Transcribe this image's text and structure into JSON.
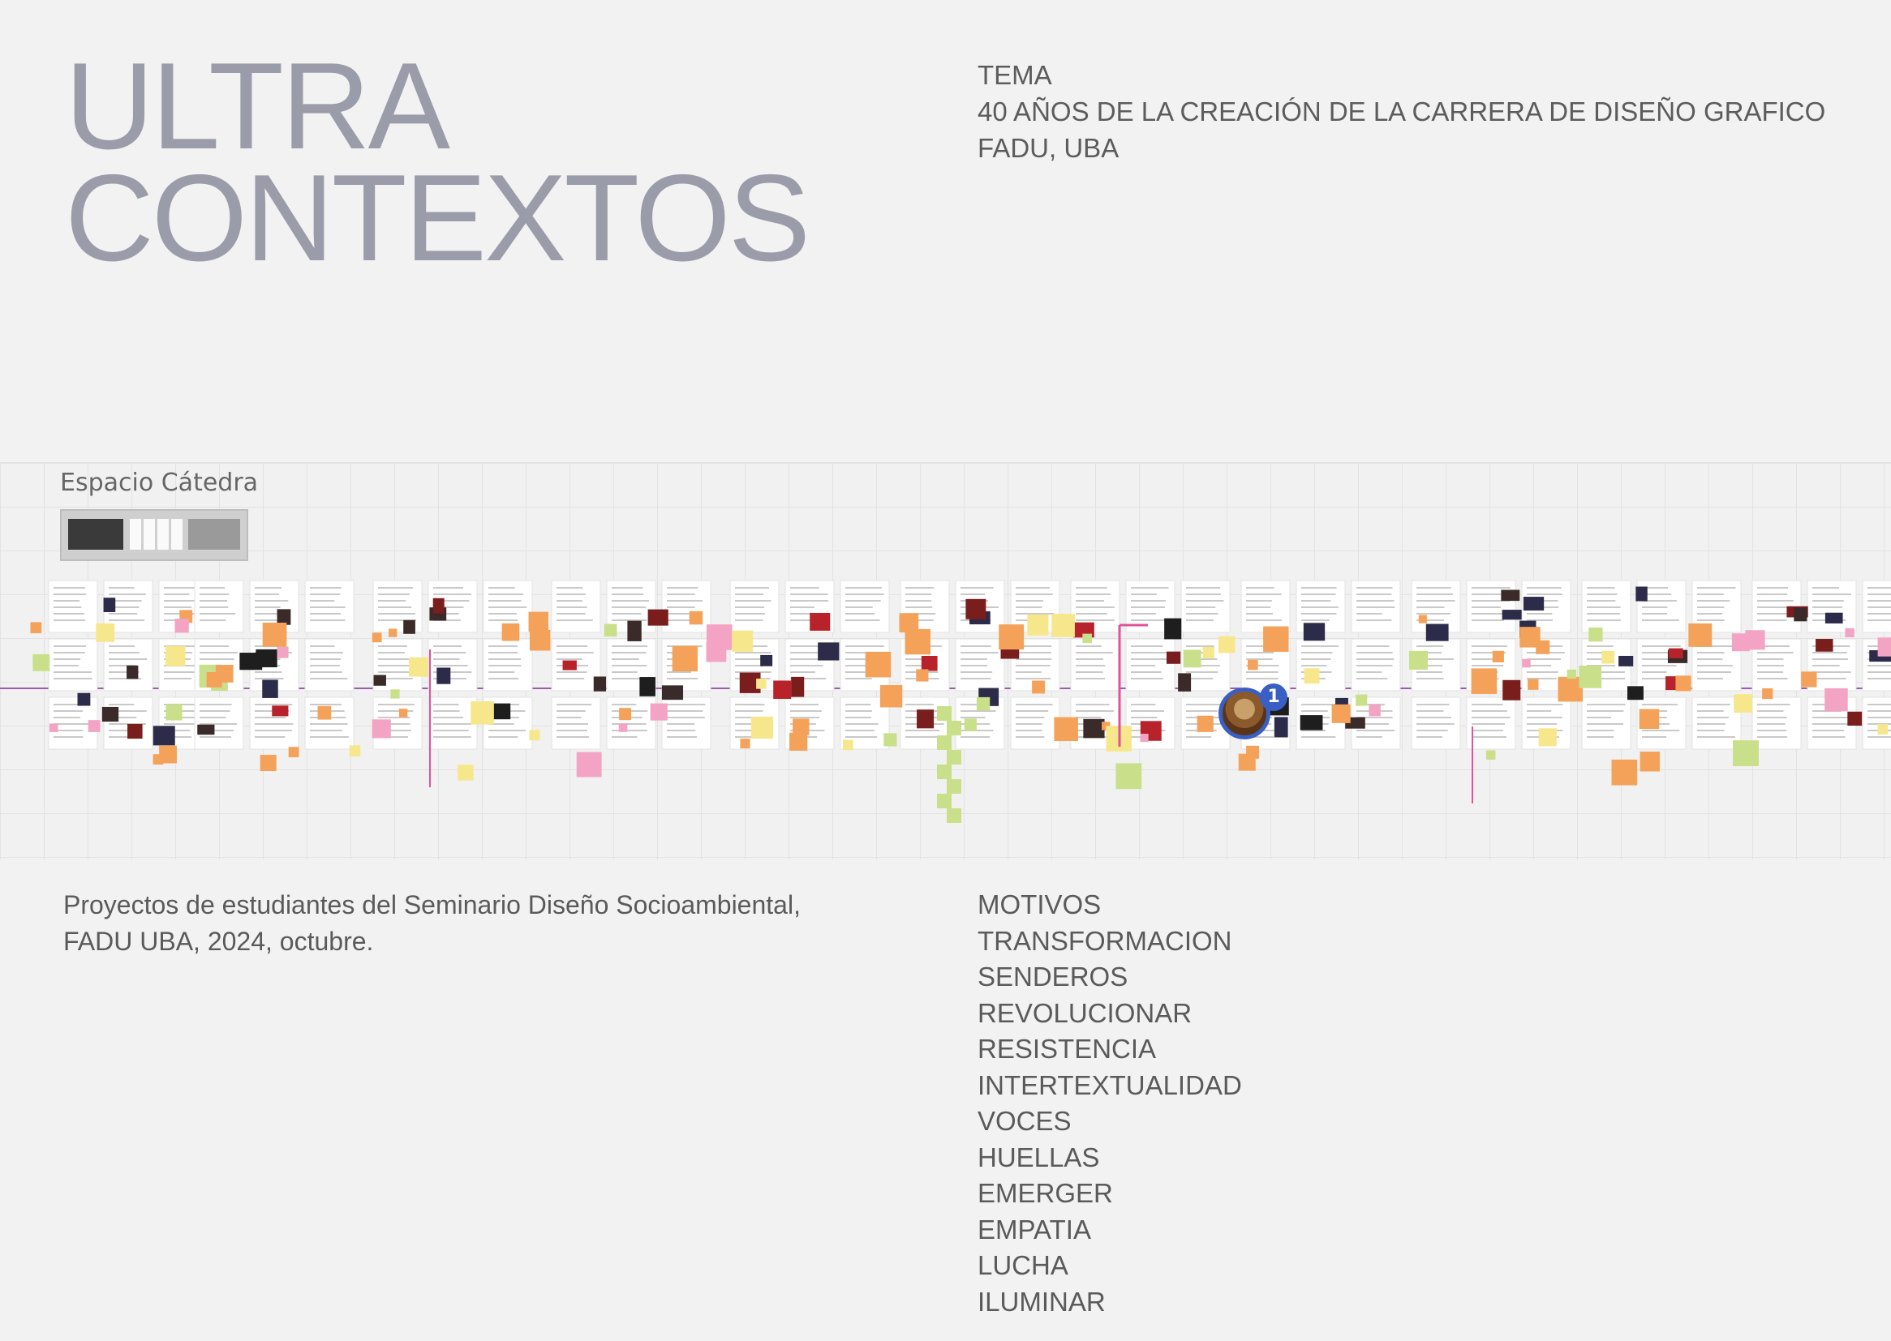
{
  "title": {
    "line1": "ULTRA",
    "line2": "CONTEXTOS"
  },
  "tema": {
    "heading": "TEMA",
    "line1": "40 AÑOS DE LA CREACIÓN DE LA CARRERA DE DISEÑO GRAFICO",
    "line2": "FADU, UBA"
  },
  "board": {
    "space_label": "Espacio Cátedra",
    "badge_count": "1",
    "colors": {
      "sticky_orange": "#f4a259",
      "sticky_green": "#c9df8a",
      "sticky_pink": "#f3a3c3",
      "connector_purple": "#9b5ca8",
      "connector_pink": "#e0529c",
      "avatar_ring": "#3a5fc4"
    }
  },
  "description": {
    "line1": "Proyectos de estudiantes del Seminario Diseño Socioambiental,",
    "line2": "FADU UBA, 2024, octubre."
  },
  "motivos": [
    "MOTIVOS",
    "TRANSFORMACION",
    "SENDEROS",
    "REVOLUCIONAR",
    "RESISTENCIA",
    "INTERTEXTUALIDAD",
    "VOCES",
    "HUELLAS",
    "EMERGER",
    "EMPATIA",
    "LUCHA",
    "ILUMINAR"
  ]
}
